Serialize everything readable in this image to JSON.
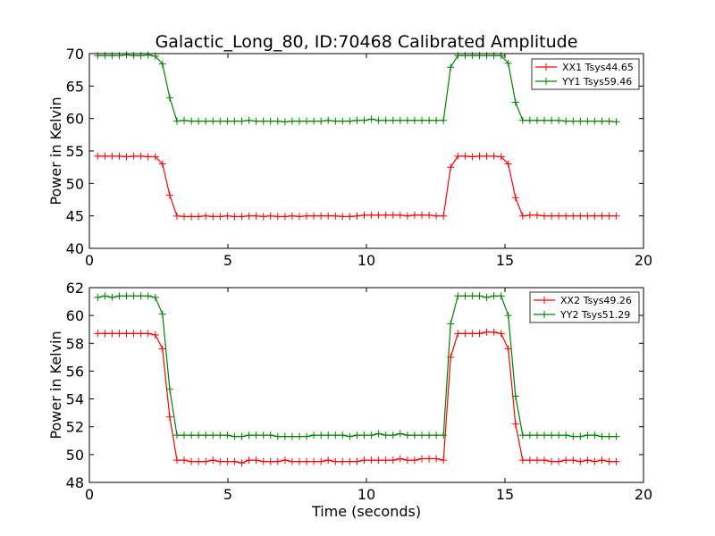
{
  "figure": {
    "title": "Galactic_Long_80, ID:70468 Calibrated Amplitude",
    "xlabel": "Time (seconds)"
  },
  "chart_data": [
    {
      "type": "line",
      "title": "Galactic_Long_80, ID:70468 Calibrated Amplitude",
      "xlabel": "",
      "ylabel": "Power in Kelvin",
      "xlim": [
        0,
        20
      ],
      "ylim": [
        40,
        70
      ],
      "xticks": [
        0,
        5,
        10,
        15,
        20
      ],
      "yticks": [
        40,
        45,
        50,
        55,
        60,
        65,
        70
      ],
      "grid": false,
      "legend_position": "top-right",
      "x": [
        0.3,
        0.56,
        0.82,
        1.08,
        1.34,
        1.6,
        1.86,
        2.12,
        2.38,
        2.64,
        2.9,
        3.16,
        3.42,
        3.68,
        3.94,
        4.2,
        4.46,
        4.72,
        4.98,
        5.24,
        5.5,
        5.76,
        6.02,
        6.28,
        6.54,
        6.8,
        7.06,
        7.32,
        7.58,
        7.84,
        8.1,
        8.36,
        8.62,
        8.88,
        9.14,
        9.4,
        9.66,
        9.92,
        10.18,
        10.44,
        10.7,
        10.96,
        11.22,
        11.48,
        11.74,
        12.0,
        12.26,
        12.52,
        12.78,
        13.04,
        13.3,
        13.56,
        13.82,
        14.08,
        14.34,
        14.6,
        14.86,
        15.12,
        15.38,
        15.64,
        15.9,
        16.16,
        16.42,
        16.68,
        16.94,
        17.2,
        17.46,
        17.72,
        17.98,
        18.24,
        18.5,
        18.76,
        19.02
      ],
      "series": [
        {
          "name": "XX1 Tsys44.65",
          "color": "#ff0000",
          "values": [
            54.2,
            54.2,
            54.2,
            54.2,
            54.1,
            54.2,
            54.2,
            54.1,
            54.1,
            53.0,
            48.2,
            45.0,
            44.9,
            44.9,
            44.9,
            45.0,
            44.9,
            44.9,
            45.0,
            44.9,
            44.9,
            45.0,
            45.0,
            44.9,
            45.0,
            44.9,
            44.9,
            45.0,
            44.9,
            45.0,
            45.0,
            45.0,
            45.0,
            45.0,
            44.9,
            44.9,
            45.0,
            45.1,
            45.1,
            45.1,
            45.1,
            45.1,
            45.1,
            45.0,
            45.1,
            45.1,
            45.1,
            45.0,
            45.0,
            52.5,
            54.2,
            54.2,
            54.1,
            54.2,
            54.2,
            54.2,
            54.1,
            53.0,
            47.8,
            45.0,
            45.1,
            45.1,
            45.0,
            45.0,
            45.0,
            45.0,
            45.0,
            45.0,
            45.0,
            45.0,
            45.0,
            45.0,
            45.0
          ]
        },
        {
          "name": "YY1 Tsys59.46",
          "color": "#008000",
          "values": [
            69.7,
            69.7,
            69.7,
            69.7,
            69.8,
            69.7,
            69.7,
            69.8,
            69.6,
            68.4,
            63.2,
            59.6,
            59.7,
            59.6,
            59.6,
            59.6,
            59.6,
            59.6,
            59.6,
            59.6,
            59.6,
            59.7,
            59.6,
            59.6,
            59.6,
            59.6,
            59.5,
            59.6,
            59.6,
            59.6,
            59.6,
            59.6,
            59.7,
            59.6,
            59.6,
            59.6,
            59.7,
            59.7,
            59.9,
            59.7,
            59.7,
            59.7,
            59.7,
            59.7,
            59.7,
            59.7,
            59.7,
            59.7,
            59.7,
            67.9,
            69.7,
            69.7,
            69.7,
            69.7,
            69.7,
            69.7,
            69.7,
            68.5,
            62.5,
            59.7,
            59.7,
            59.7,
            59.7,
            59.7,
            59.7,
            59.6,
            59.6,
            59.6,
            59.6,
            59.6,
            59.6,
            59.6,
            59.5
          ]
        }
      ]
    },
    {
      "type": "line",
      "title": "",
      "xlabel": "Time (seconds)",
      "ylabel": "Power in Kelvin",
      "xlim": [
        0,
        20
      ],
      "ylim": [
        48,
        62
      ],
      "xticks": [
        0,
        5,
        10,
        15,
        20
      ],
      "yticks": [
        48,
        50,
        52,
        54,
        56,
        58,
        60,
        62
      ],
      "grid": false,
      "legend_position": "top-right",
      "x": [
        0.3,
        0.56,
        0.82,
        1.08,
        1.34,
        1.6,
        1.86,
        2.12,
        2.38,
        2.64,
        2.9,
        3.16,
        3.42,
        3.68,
        3.94,
        4.2,
        4.46,
        4.72,
        4.98,
        5.24,
        5.5,
        5.76,
        6.02,
        6.28,
        6.54,
        6.8,
        7.06,
        7.32,
        7.58,
        7.84,
        8.1,
        8.36,
        8.62,
        8.88,
        9.14,
        9.4,
        9.66,
        9.92,
        10.18,
        10.44,
        10.7,
        10.96,
        11.22,
        11.48,
        11.74,
        12.0,
        12.26,
        12.52,
        12.78,
        13.04,
        13.3,
        13.56,
        13.82,
        14.08,
        14.34,
        14.6,
        14.86,
        15.12,
        15.38,
        15.64,
        15.9,
        16.16,
        16.42,
        16.68,
        16.94,
        17.2,
        17.46,
        17.72,
        17.98,
        18.24,
        18.5,
        18.76,
        19.02
      ],
      "series": [
        {
          "name": "XX2 Tsys49.26",
          "color": "#ff0000",
          "values": [
            58.7,
            58.7,
            58.7,
            58.7,
            58.7,
            58.7,
            58.7,
            58.7,
            58.6,
            57.6,
            52.7,
            49.6,
            49.6,
            49.5,
            49.5,
            49.5,
            49.6,
            49.5,
            49.5,
            49.5,
            49.4,
            49.6,
            49.6,
            49.5,
            49.5,
            49.5,
            49.6,
            49.5,
            49.5,
            49.5,
            49.5,
            49.5,
            49.6,
            49.5,
            49.5,
            49.5,
            49.5,
            49.6,
            49.6,
            49.6,
            49.6,
            49.6,
            49.7,
            49.6,
            49.6,
            49.7,
            49.7,
            49.7,
            49.6,
            57.0,
            58.7,
            58.7,
            58.7,
            58.7,
            58.8,
            58.8,
            58.7,
            57.6,
            52.2,
            49.6,
            49.6,
            49.6,
            49.6,
            49.5,
            49.5,
            49.6,
            49.6,
            49.5,
            49.6,
            49.5,
            49.6,
            49.5,
            49.5
          ]
        },
        {
          "name": "YY2 Tsys51.29",
          "color": "#008000",
          "values": [
            61.3,
            61.4,
            61.3,
            61.4,
            61.4,
            61.4,
            61.4,
            61.4,
            61.3,
            60.1,
            54.7,
            51.4,
            51.4,
            51.4,
            51.4,
            51.4,
            51.4,
            51.4,
            51.4,
            51.3,
            51.3,
            51.4,
            51.4,
            51.4,
            51.4,
            51.3,
            51.3,
            51.3,
            51.3,
            51.3,
            51.4,
            51.4,
            51.4,
            51.4,
            51.4,
            51.3,
            51.4,
            51.4,
            51.4,
            51.5,
            51.4,
            51.4,
            51.5,
            51.4,
            51.4,
            51.4,
            51.4,
            51.4,
            51.4,
            59.4,
            61.4,
            61.4,
            61.4,
            61.4,
            61.3,
            61.4,
            61.4,
            60.0,
            54.2,
            51.4,
            51.4,
            51.4,
            51.4,
            51.4,
            51.4,
            51.4,
            51.3,
            51.3,
            51.4,
            51.4,
            51.3,
            51.3,
            51.3
          ]
        }
      ]
    }
  ]
}
